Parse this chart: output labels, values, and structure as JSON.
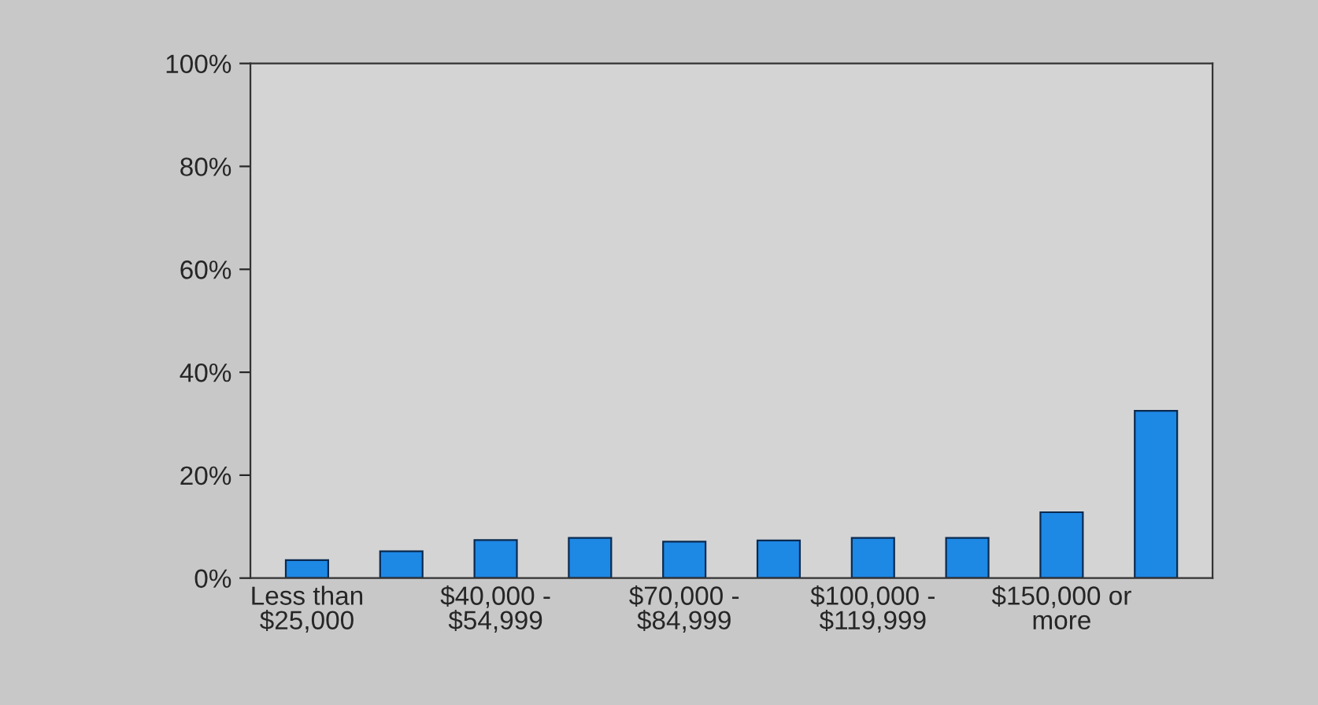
{
  "chart_data": {
    "type": "bar",
    "categories": [
      "Less than $25,000",
      null,
      "$40,000 - $54,999",
      null,
      "$70,000 - $84,999",
      null,
      "$100,000 - $119,999",
      null,
      "$150,000 or more",
      null
    ],
    "values": [
      3.5,
      5.2,
      7.4,
      7.8,
      7.1,
      7.3,
      7.8,
      7.8,
      12.8,
      32.5
    ],
    "color": "#1e88e5",
    "ylim": [
      0,
      100
    ],
    "yticks": [
      {
        "value": 0,
        "label": "0%"
      },
      {
        "value": 20,
        "label": "20%"
      },
      {
        "value": 40,
        "label": "40%"
      },
      {
        "value": 60,
        "label": "60%"
      },
      {
        "value": 80,
        "label": "80%"
      },
      {
        "value": 100,
        "label": "100%"
      }
    ],
    "grid": false
  }
}
